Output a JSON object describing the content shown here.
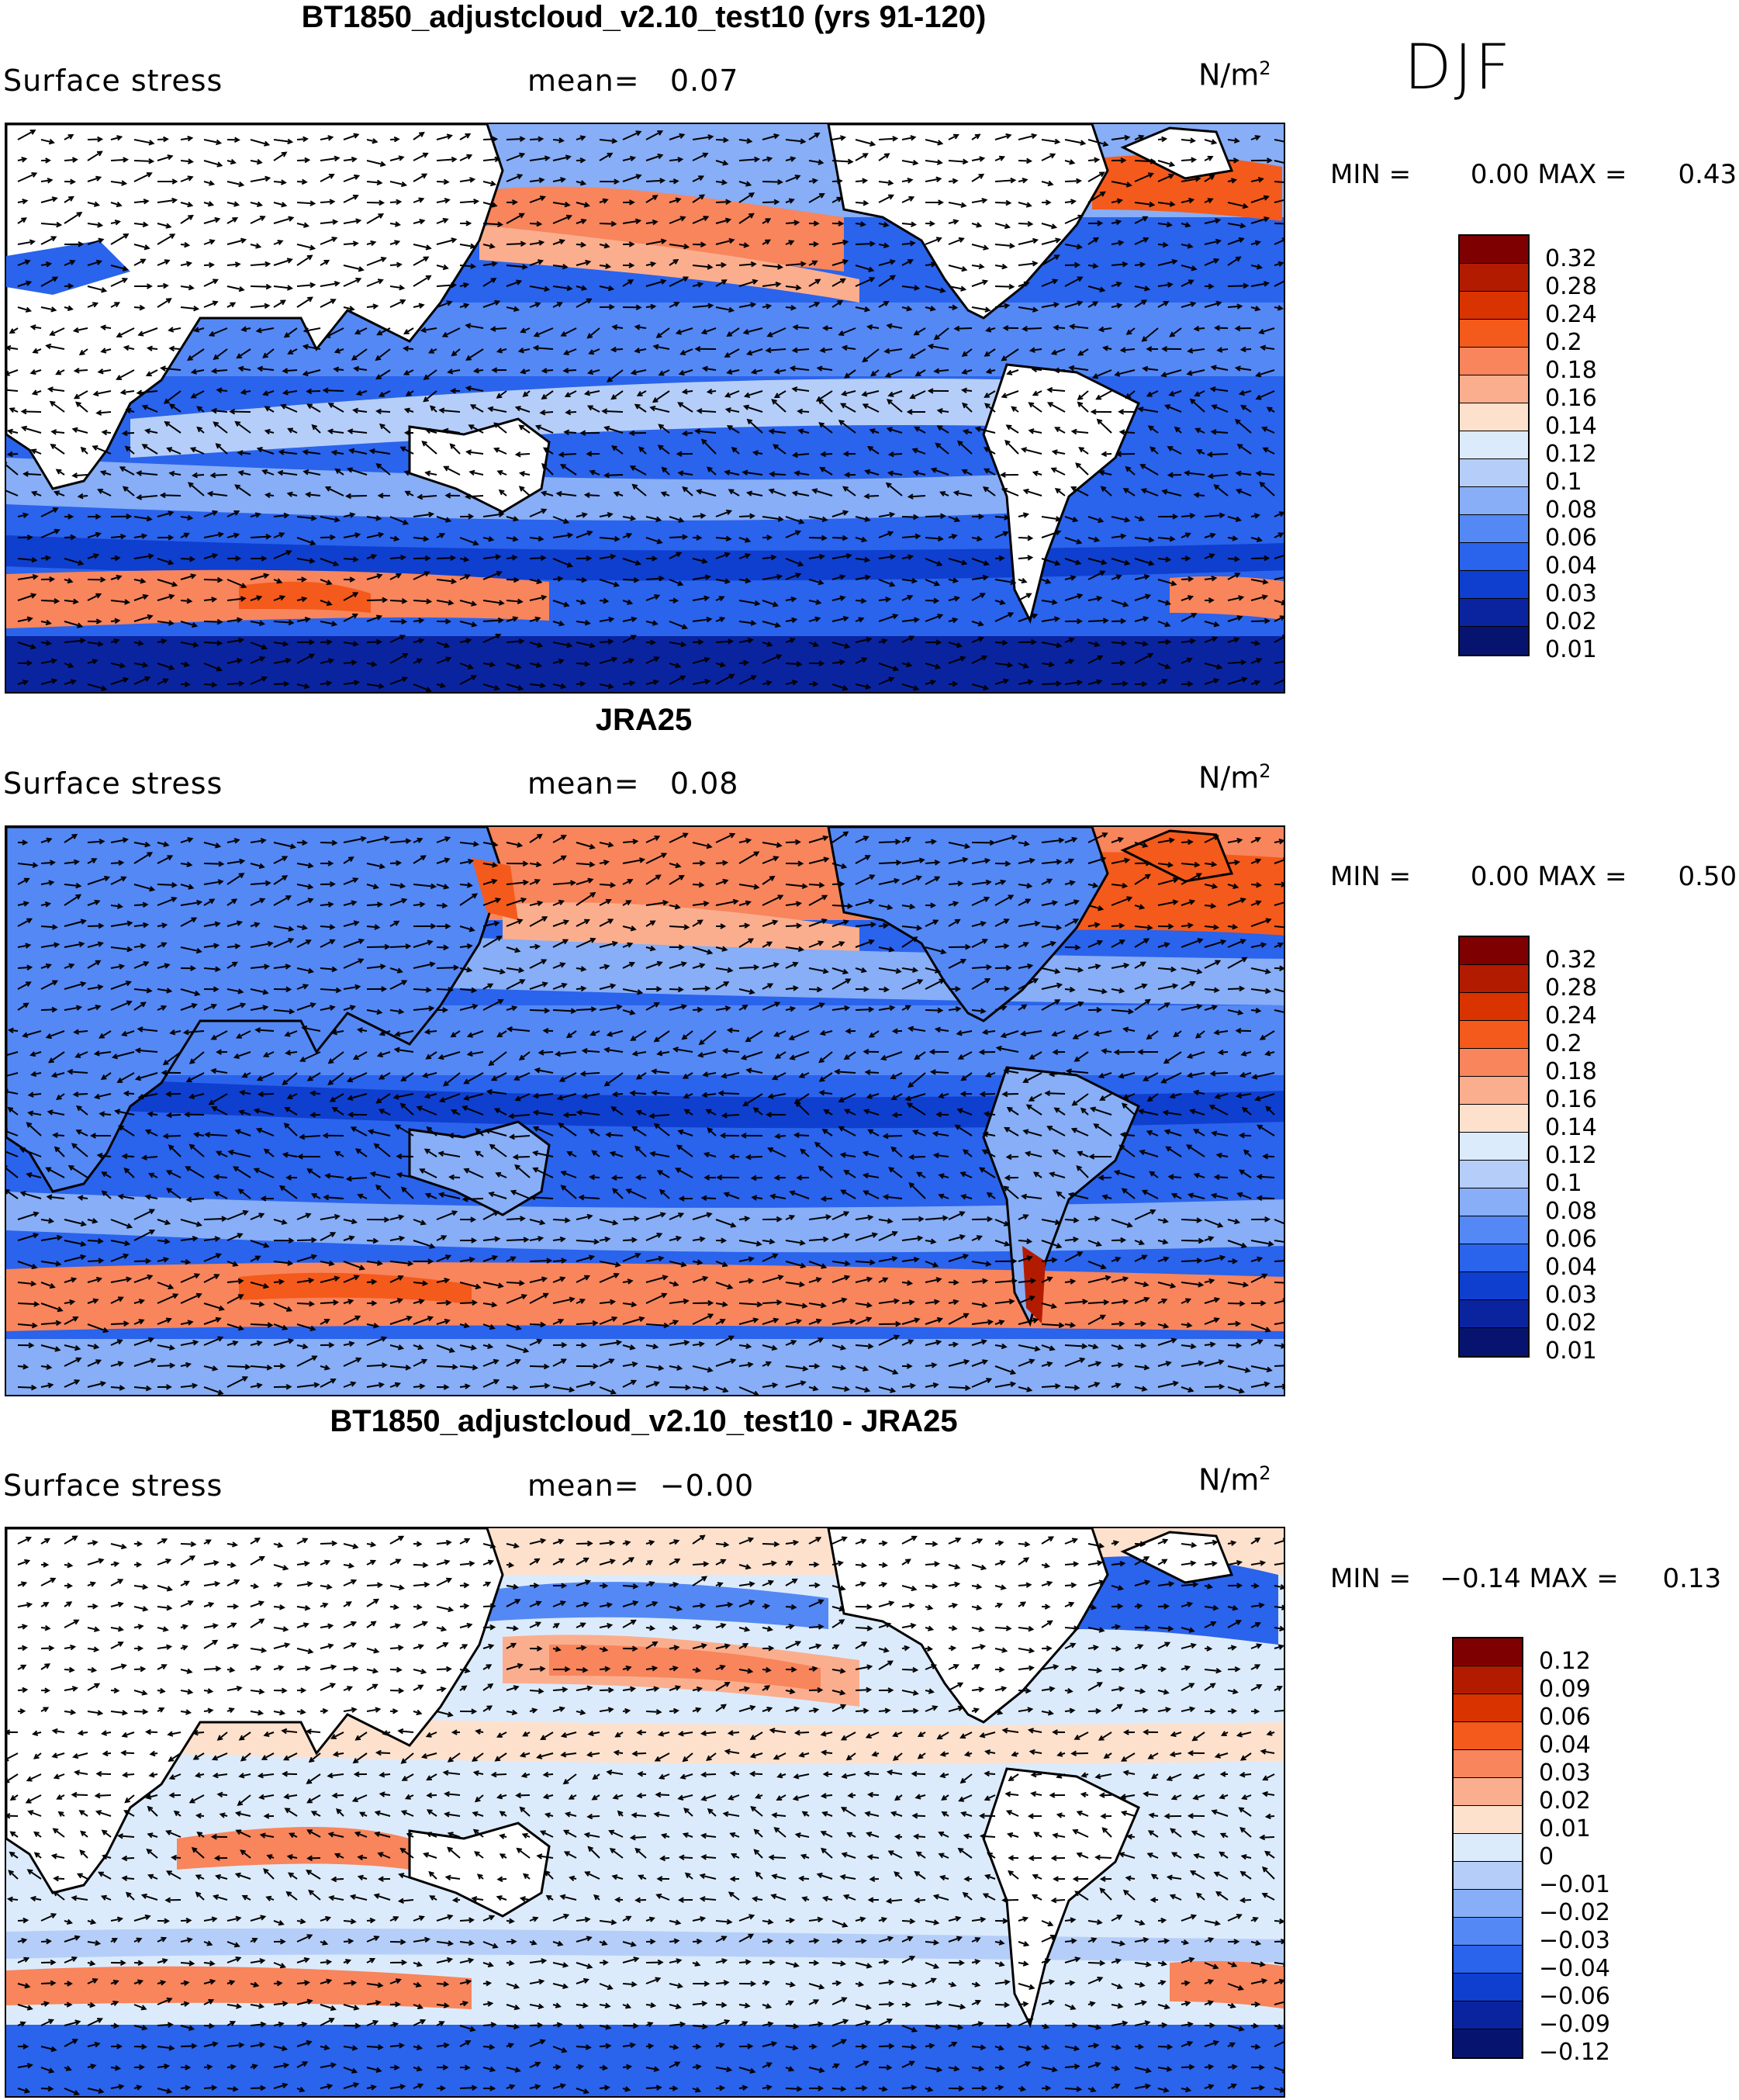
{
  "season": "DJF",
  "panels": [
    {
      "title": "BT1850_adjustcloud_v2.10_test10 (yrs 91-120)",
      "variable": "Surface stress",
      "mean_label": "mean=",
      "mean_value": "0.07",
      "units": "N/m",
      "units_exp": "2",
      "min_label": "MIN =",
      "min_value": "0.00",
      "max_label": "MAX =",
      "max_value": "0.43",
      "colorbar": {
        "colors": [
          "#7f0000",
          "#b31b00",
          "#d93300",
          "#f45a1b",
          "#f8855c",
          "#fbae8e",
          "#fde1cd",
          "#dcebfb",
          "#b5cef9",
          "#87aef6",
          "#5488f5",
          "#2a63ec",
          "#0f3fcf",
          "#0a24a0",
          "#061470"
        ],
        "ticks": [
          "0.32",
          "0.28",
          "0.24",
          "0.2",
          "0.18",
          "0.16",
          "0.14",
          "0.12",
          "0.1",
          "0.08",
          "0.06",
          "0.04",
          "0.03",
          "0.02",
          "0.01"
        ]
      }
    },
    {
      "title": "JRA25",
      "variable": "Surface stress",
      "mean_label": "mean=",
      "mean_value": "0.08",
      "units": "N/m",
      "units_exp": "2",
      "min_label": "MIN =",
      "min_value": "0.00",
      "max_label": "MAX =",
      "max_value": "0.50",
      "colorbar": {
        "colors": [
          "#7f0000",
          "#b31b00",
          "#d93300",
          "#f45a1b",
          "#f8855c",
          "#fbae8e",
          "#fde1cd",
          "#dcebfb",
          "#b5cef9",
          "#87aef6",
          "#5488f5",
          "#2a63ec",
          "#0f3fcf",
          "#0a24a0",
          "#061470"
        ],
        "ticks": [
          "0.32",
          "0.28",
          "0.24",
          "0.2",
          "0.18",
          "0.16",
          "0.14",
          "0.12",
          "0.1",
          "0.08",
          "0.06",
          "0.04",
          "0.03",
          "0.02",
          "0.01"
        ]
      }
    },
    {
      "title": "BT1850_adjustcloud_v2.10_test10 - JRA25",
      "variable": "Surface stress",
      "mean_label": "mean=",
      "mean_value": "−0.00",
      "units": "N/m",
      "units_exp": "2",
      "min_label": "MIN =",
      "min_value": "−0.14",
      "max_label": "MAX =",
      "max_value": "0.13",
      "colorbar": {
        "colors": [
          "#7f0000",
          "#b31b00",
          "#d93300",
          "#f45a1b",
          "#f8855c",
          "#fbae8e",
          "#fde1cd",
          "#dcebfb",
          "#b5cef9",
          "#87aef6",
          "#5488f5",
          "#2a63ec",
          "#0f3fcf",
          "#0a24a0",
          "#061470"
        ],
        "ticks": [
          "0.12",
          "0.09",
          "0.06",
          "0.04",
          "0.03",
          "0.02",
          "0.01",
          "0",
          "−0.01",
          "−0.02",
          "−0.03",
          "−0.04",
          "−0.06",
          "−0.09",
          "−0.12"
        ]
      }
    }
  ]
}
